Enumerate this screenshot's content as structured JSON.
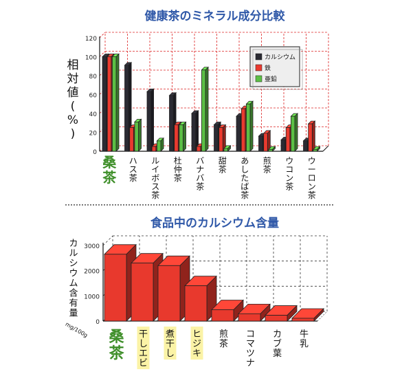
{
  "titles": {
    "top": "健康茶のミネラル成分比較",
    "bottom": "食品中のカルシウム含量"
  },
  "colors": {
    "calcium": "#2b2b33",
    "iron": "#ea3a2f",
    "zinc": "#5cbf45",
    "bar_red": "#e8392d",
    "highlight": "#fbf3a6",
    "green_text": "#3f8f2a",
    "title_blue": "#2f58a8"
  },
  "chart_data": [
    {
      "type": "bar",
      "title": "健康茶のミネラル成分比較",
      "ylabel": "相対値(%)",
      "xlabel": "",
      "ylim": [
        0,
        120
      ],
      "yticks": [
        0,
        20,
        40,
        60,
        80,
        100,
        120
      ],
      "grid": true,
      "legend_position": "top-right",
      "categories": [
        "桑茶",
        "ハス茶",
        "ルイボス茶",
        "杜仲茶",
        "バナバ茶",
        "甜茶",
        "あしたば茶",
        "煎茶",
        "ウコン茶",
        "ウーロン茶"
      ],
      "highlight_category": "桑茶",
      "series": [
        {
          "name": "カルシウム",
          "values": [
            100,
            91,
            63,
            59,
            40,
            28,
            37,
            16,
            12,
            11
          ]
        },
        {
          "name": "鉄",
          "values": [
            100,
            25,
            5,
            28,
            5,
            25,
            45,
            19,
            25,
            29
          ]
        },
        {
          "name": "亜鉛",
          "values": [
            100,
            31,
            11,
            28,
            86,
            3,
            50,
            2,
            37,
            2
          ]
        }
      ]
    },
    {
      "type": "bar",
      "title": "食品中のカルシウム含量",
      "ylabel": "カルシウム含有量",
      "yunit": "mg/100g",
      "xlabel": "",
      "ylim": [
        0,
        3000
      ],
      "yticks": [
        0,
        1000,
        2000,
        3000
      ],
      "grid": true,
      "categories": [
        "桑茶",
        "干しエビ",
        "煮干し",
        "ヒジキ",
        "煎茶",
        "コマツナ",
        "カブ葉",
        "牛乳"
      ],
      "highlight_categories": [
        "干しエビ",
        "煮干し",
        "ヒジキ"
      ],
      "values": [
        2650,
        2300,
        2200,
        1400,
        450,
        290,
        230,
        110
      ]
    }
  ]
}
